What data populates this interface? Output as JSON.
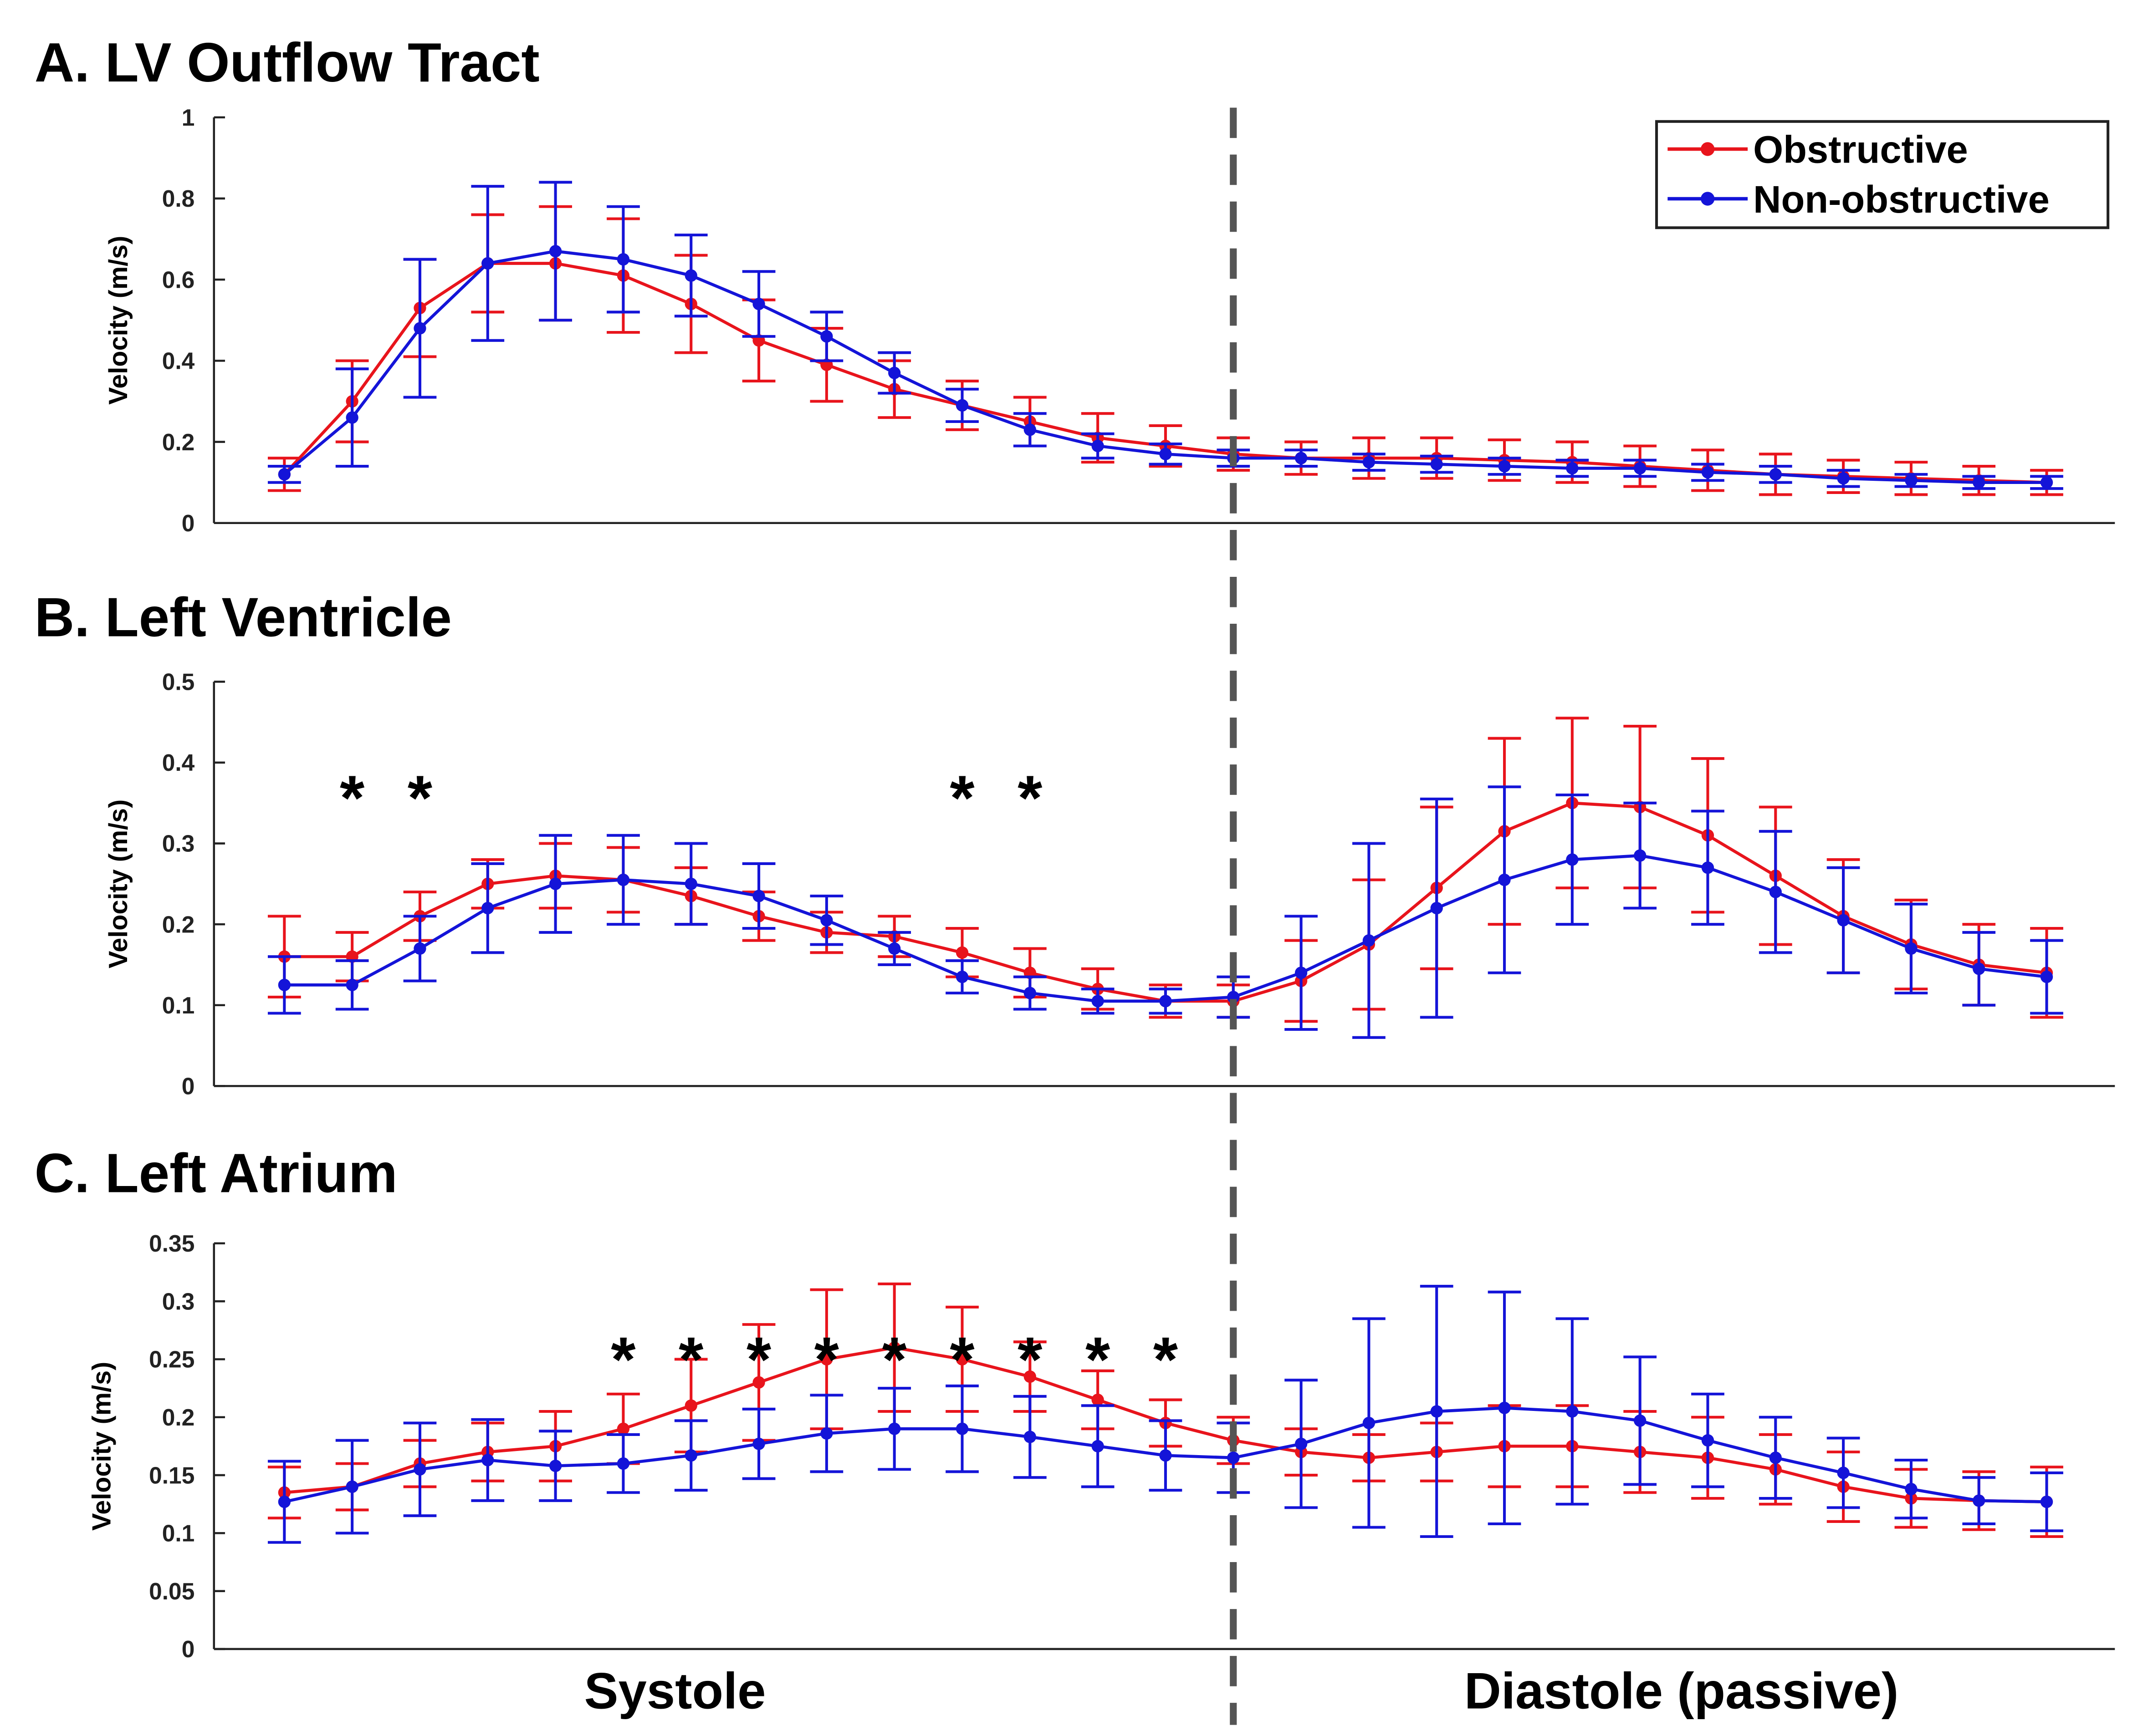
{
  "chart_data": [
    {
      "type": "line",
      "title": "A. LV Outflow Tract",
      "y_label": "Velocity (m/s)",
      "ylim": [
        0,
        1
      ],
      "yticks": [
        0,
        0.2,
        0.4,
        0.6,
        0.8,
        1
      ],
      "legend": "upper right",
      "series": [
        {
          "name": "Obstructive",
          "color": "#e8141c",
          "values": [
            0.12,
            0.3,
            0.53,
            0.64,
            0.64,
            0.61,
            0.54,
            0.45,
            0.39,
            0.33,
            0.29,
            0.25,
            0.21,
            0.19,
            0.17,
            0.16,
            0.16,
            0.16,
            0.155,
            0.15,
            0.14,
            0.13,
            0.12,
            0.115,
            0.11,
            0.105,
            0.1
          ],
          "errors": [
            0.04,
            0.1,
            0.12,
            0.12,
            0.14,
            0.14,
            0.12,
            0.1,
            0.09,
            0.07,
            0.06,
            0.06,
            0.06,
            0.05,
            0.04,
            0.04,
            0.05,
            0.05,
            0.05,
            0.05,
            0.05,
            0.05,
            0.05,
            0.04,
            0.04,
            0.035,
            0.03
          ]
        },
        {
          "name": "Non-obstructive",
          "color": "#1414d8",
          "values": [
            0.12,
            0.26,
            0.48,
            0.64,
            0.67,
            0.65,
            0.61,
            0.54,
            0.46,
            0.37,
            0.29,
            0.23,
            0.19,
            0.17,
            0.16,
            0.16,
            0.15,
            0.145,
            0.14,
            0.135,
            0.135,
            0.125,
            0.12,
            0.11,
            0.105,
            0.1,
            0.1
          ],
          "errors": [
            0.02,
            0.12,
            0.17,
            0.19,
            0.17,
            0.13,
            0.1,
            0.08,
            0.06,
            0.05,
            0.04,
            0.04,
            0.03,
            0.025,
            0.02,
            0.02,
            0.02,
            0.02,
            0.02,
            0.02,
            0.02,
            0.02,
            0.02,
            0.02,
            0.015,
            0.015,
            0.015
          ]
        }
      ],
      "annotations": []
    },
    {
      "type": "line",
      "title": "B. Left Ventricle",
      "y_label": "Velocity (m/s)",
      "ylim": [
        0,
        0.5
      ],
      "yticks": [
        0,
        0.1,
        0.2,
        0.3,
        0.4,
        0.5
      ],
      "series": [
        {
          "name": "Obstructive",
          "color": "#e8141c",
          "values": [
            0.16,
            0.16,
            0.21,
            0.25,
            0.26,
            0.255,
            0.235,
            0.21,
            0.19,
            0.185,
            0.165,
            0.14,
            0.12,
            0.105,
            0.105,
            0.13,
            0.175,
            0.245,
            0.315,
            0.35,
            0.345,
            0.31,
            0.26,
            0.21,
            0.175,
            0.15,
            0.14
          ],
          "errors": [
            0.05,
            0.03,
            0.03,
            0.03,
            0.04,
            0.04,
            0.035,
            0.03,
            0.025,
            0.025,
            0.03,
            0.03,
            0.025,
            0.02,
            0.02,
            0.05,
            0.08,
            0.1,
            0.115,
            0.105,
            0.1,
            0.095,
            0.085,
            0.07,
            0.055,
            0.05,
            0.055
          ]
        },
        {
          "name": "Non-obstructive",
          "color": "#1414d8",
          "values": [
            0.125,
            0.125,
            0.17,
            0.22,
            0.25,
            0.255,
            0.25,
            0.235,
            0.205,
            0.17,
            0.135,
            0.115,
            0.105,
            0.105,
            0.11,
            0.14,
            0.18,
            0.22,
            0.255,
            0.28,
            0.285,
            0.27,
            0.24,
            0.205,
            0.17,
            0.145,
            0.135
          ],
          "errors": [
            0.035,
            0.03,
            0.04,
            0.055,
            0.06,
            0.055,
            0.05,
            0.04,
            0.03,
            0.02,
            0.02,
            0.02,
            0.015,
            0.015,
            0.025,
            0.07,
            0.12,
            0.135,
            0.115,
            0.08,
            0.065,
            0.07,
            0.075,
            0.065,
            0.055,
            0.045,
            0.045
          ]
        }
      ],
      "annotations": [
        {
          "text": "*",
          "x": 1
        },
        {
          "text": "*",
          "x": 2
        },
        {
          "text": "*",
          "x": 10
        },
        {
          "text": "*",
          "x": 11
        }
      ]
    },
    {
      "type": "line",
      "title": "C. Left Atrium",
      "y_label": "Velocity (m/s)",
      "ylim": [
        0,
        0.35
      ],
      "yticks": [
        0,
        0.05,
        0.1,
        0.15,
        0.2,
        0.25,
        0.3,
        0.35
      ],
      "series": [
        {
          "name": "Obstructive",
          "color": "#e8141c",
          "values": [
            0.135,
            0.14,
            0.16,
            0.17,
            0.175,
            0.19,
            0.21,
            0.23,
            0.25,
            0.26,
            0.25,
            0.235,
            0.215,
            0.195,
            0.18,
            0.17,
            0.165,
            0.17,
            0.175,
            0.175,
            0.17,
            0.165,
            0.155,
            0.14,
            0.13,
            0.128,
            0.127
          ],
          "errors": [
            0.022,
            0.02,
            0.02,
            0.025,
            0.03,
            0.03,
            0.04,
            0.05,
            0.06,
            0.055,
            0.045,
            0.03,
            0.025,
            0.02,
            0.02,
            0.02,
            0.02,
            0.025,
            0.035,
            0.035,
            0.035,
            0.035,
            0.03,
            0.03,
            0.025,
            0.025,
            0.03
          ]
        },
        {
          "name": "Non-obstructive",
          "color": "#1414d8",
          "values": [
            0.127,
            0.14,
            0.155,
            0.163,
            0.158,
            0.16,
            0.167,
            0.177,
            0.186,
            0.19,
            0.19,
            0.183,
            0.175,
            0.167,
            0.165,
            0.177,
            0.195,
            0.205,
            0.208,
            0.205,
            0.197,
            0.18,
            0.165,
            0.152,
            0.138,
            0.128,
            0.127
          ],
          "errors": [
            0.035,
            0.04,
            0.04,
            0.035,
            0.03,
            0.025,
            0.03,
            0.03,
            0.033,
            0.035,
            0.037,
            0.035,
            0.035,
            0.03,
            0.03,
            0.055,
            0.09,
            0.108,
            0.1,
            0.08,
            0.055,
            0.04,
            0.035,
            0.03,
            0.025,
            0.02,
            0.025
          ]
        }
      ],
      "annotations": [
        {
          "text": "*",
          "x": 5
        },
        {
          "text": "*",
          "x": 6
        },
        {
          "text": "*",
          "x": 7
        },
        {
          "text": "*",
          "x": 8
        },
        {
          "text": "*",
          "x": 9
        },
        {
          "text": "*",
          "x": 10
        },
        {
          "text": "*",
          "x": 11
        },
        {
          "text": "*",
          "x": 12
        },
        {
          "text": "*",
          "x": 13
        }
      ]
    }
  ],
  "divider_index": 14,
  "phase_labels": [
    "Systole",
    "Diastole (passive)"
  ]
}
